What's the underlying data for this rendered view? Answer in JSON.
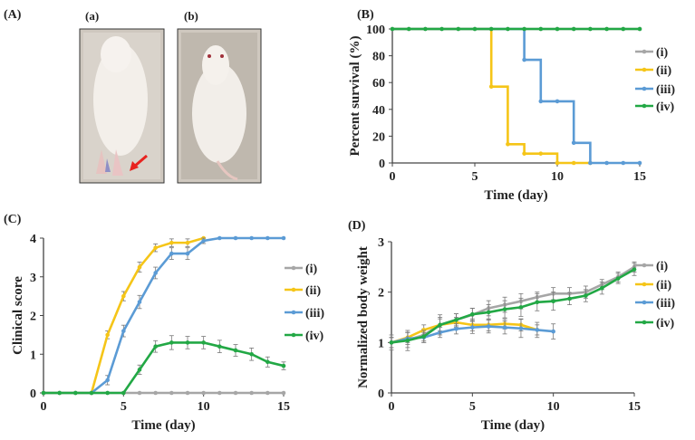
{
  "panel_labels": {
    "A": "(A)",
    "a": "(a)",
    "b": "(b)",
    "B": "(B)",
    "C": "(C)",
    "D": "(D)"
  },
  "colors": {
    "i": "#a6a6a6",
    "ii": "#f5c518",
    "iii": "#5b9bd5",
    "iv": "#22a845",
    "arrow": "#e8231f"
  },
  "chart_data": [
    {
      "id": "B",
      "type": "line",
      "step": true,
      "title": "",
      "xlabel": "Time (day)",
      "ylabel": "Percent survival (%)",
      "xlim": [
        0,
        15
      ],
      "ylim": [
        0,
        100
      ],
      "xticks": [
        0,
        5,
        10,
        15
      ],
      "yticks": [
        0,
        20,
        40,
        60,
        80,
        100
      ],
      "legend": "right",
      "series": [
        {
          "name": "(i)",
          "key": "i",
          "x": [
            0,
            1,
            2,
            3,
            4,
            5,
            6,
            7,
            8,
            9,
            10,
            11,
            12,
            13,
            14,
            15
          ],
          "y": [
            100,
            100,
            100,
            100,
            100,
            100,
            100,
            100,
            100,
            100,
            100,
            100,
            100,
            100,
            100,
            100
          ]
        },
        {
          "name": "(ii)",
          "key": "ii",
          "x": [
            0,
            6,
            7,
            8,
            9,
            10,
            11,
            12
          ],
          "y": [
            100,
            57,
            14,
            7,
            7,
            0,
            0,
            0
          ]
        },
        {
          "name": "(iii)",
          "key": "iii",
          "x": [
            0,
            8,
            9,
            10,
            11,
            12,
            13,
            14,
            15
          ],
          "y": [
            100,
            77,
            46,
            46,
            15,
            0,
            0,
            0,
            0
          ]
        },
        {
          "name": "(iv)",
          "key": "iv",
          "x": [
            0,
            1,
            2,
            3,
            4,
            5,
            6,
            7,
            8,
            9,
            10,
            11,
            12,
            13,
            14,
            15
          ],
          "y": [
            100,
            100,
            100,
            100,
            100,
            100,
            100,
            100,
            100,
            100,
            100,
            100,
            100,
            100,
            100,
            100
          ]
        }
      ]
    },
    {
      "id": "C",
      "type": "line",
      "title": "",
      "xlabel": "Time (day)",
      "ylabel": "Clinical score",
      "xlim": [
        0,
        15
      ],
      "ylim": [
        0,
        4
      ],
      "xticks": [
        0,
        5,
        10,
        15
      ],
      "yticks": [
        0,
        1,
        2,
        3,
        4
      ],
      "legend": "right",
      "series": [
        {
          "name": "(i)",
          "key": "i",
          "x": [
            0,
            1,
            2,
            3,
            4,
            5,
            6,
            7,
            8,
            9,
            10,
            11,
            12,
            13,
            14,
            15
          ],
          "y": [
            0,
            0,
            0,
            0,
            0,
            0,
            0,
            0,
            0,
            0,
            0,
            0,
            0,
            0,
            0,
            0
          ],
          "err": [
            0,
            0,
            0,
            0,
            0,
            0,
            0,
            0,
            0,
            0,
            0,
            0,
            0,
            0,
            0,
            0
          ]
        },
        {
          "name": "(ii)",
          "key": "ii",
          "x": [
            0,
            1,
            2,
            3,
            4,
            5,
            6,
            7,
            8,
            9,
            10
          ],
          "y": [
            0,
            0,
            0,
            0,
            1.5,
            2.5,
            3.25,
            3.75,
            3.88,
            3.88,
            4.0
          ],
          "err": [
            0,
            0,
            0,
            0,
            0.1,
            0.12,
            0.13,
            0.1,
            0.1,
            0.1,
            0
          ]
        },
        {
          "name": "(iii)",
          "key": "iii",
          "x": [
            0,
            1,
            2,
            3,
            4,
            5,
            6,
            7,
            8,
            9,
            10,
            11,
            12,
            13,
            14,
            15
          ],
          "y": [
            0,
            0,
            0,
            0,
            0.33,
            1.6,
            2.35,
            3.1,
            3.6,
            3.6,
            3.93,
            4,
            4,
            4,
            4,
            4
          ],
          "err": [
            0,
            0,
            0,
            0,
            0.12,
            0.15,
            0.17,
            0.15,
            0.15,
            0.15,
            0.07,
            0,
            0,
            0,
            0,
            0
          ]
        },
        {
          "name": "(iv)",
          "key": "iv",
          "x": [
            0,
            1,
            2,
            3,
            4,
            5,
            6,
            7,
            8,
            9,
            10,
            11,
            12,
            13,
            14,
            15
          ],
          "y": [
            0,
            0,
            0,
            0,
            0,
            0,
            0.6,
            1.2,
            1.3,
            1.3,
            1.3,
            1.2,
            1.1,
            1.0,
            0.8,
            0.7
          ],
          "err": [
            0,
            0,
            0,
            0,
            0,
            0,
            0.12,
            0.15,
            0.18,
            0.16,
            0.16,
            0.16,
            0.15,
            0.16,
            0.13,
            0.1
          ]
        }
      ]
    },
    {
      "id": "D",
      "type": "line",
      "title": "",
      "xlabel": "Time (day)",
      "ylabel": "Normalized body weight",
      "xlim": [
        0,
        15
      ],
      "ylim": [
        0,
        3
      ],
      "xticks": [
        0,
        5,
        10,
        15
      ],
      "yticks": [
        0,
        1,
        2,
        3
      ],
      "legend": "right",
      "series": [
        {
          "name": "(i)",
          "key": "i",
          "x": [
            0,
            1,
            2,
            3,
            4,
            5,
            6,
            7,
            8,
            9,
            10,
            11,
            12,
            13,
            14,
            15
          ],
          "y": [
            1,
            1.05,
            1.15,
            1.35,
            1.45,
            1.55,
            1.68,
            1.75,
            1.82,
            1.9,
            1.97,
            1.97,
            2.0,
            2.15,
            2.3,
            2.5
          ],
          "err": [
            0.1,
            0.15,
            0.12,
            0.15,
            0.12,
            0.13,
            0.15,
            0.15,
            0.15,
            0.1,
            0.12,
            0.12,
            0.12,
            0.1,
            0.1,
            0.1
          ]
        },
        {
          "name": "(ii)",
          "key": "ii",
          "x": [
            0,
            1,
            2,
            3,
            4,
            5,
            6,
            7,
            8,
            9
          ],
          "y": [
            1,
            1.1,
            1.25,
            1.35,
            1.4,
            1.35,
            1.35,
            1.37,
            1.35,
            1.25
          ],
          "err": [
            0.1,
            0.1,
            0.1,
            0.12,
            0.1,
            0.12,
            0.12,
            0.1,
            0.12,
            0.1
          ]
        },
        {
          "name": "(iii)",
          "key": "iii",
          "x": [
            0,
            1,
            2,
            3,
            4,
            5,
            6,
            7,
            8,
            9,
            10
          ],
          "y": [
            1,
            1.08,
            1.1,
            1.2,
            1.27,
            1.3,
            1.32,
            1.3,
            1.28,
            1.25,
            1.22
          ],
          "err": [
            0.1,
            0.12,
            0.1,
            0.1,
            0.1,
            0.12,
            0.13,
            0.13,
            0.18,
            0.15,
            0.15
          ]
        },
        {
          "name": "(iv)",
          "key": "iv",
          "x": [
            0,
            1,
            2,
            3,
            4,
            5,
            6,
            7,
            8,
            9,
            10,
            11,
            12,
            13,
            14,
            15
          ],
          "y": [
            1,
            1.04,
            1.12,
            1.35,
            1.45,
            1.56,
            1.6,
            1.66,
            1.7,
            1.8,
            1.82,
            1.87,
            1.93,
            2.08,
            2.27,
            2.45
          ],
          "err": [
            0.15,
            0.2,
            0.12,
            0.2,
            0.12,
            0.12,
            0.15,
            0.17,
            0.18,
            0.17,
            0.18,
            0.12,
            0.12,
            0.12,
            0.1,
            0.12
          ]
        }
      ]
    }
  ]
}
